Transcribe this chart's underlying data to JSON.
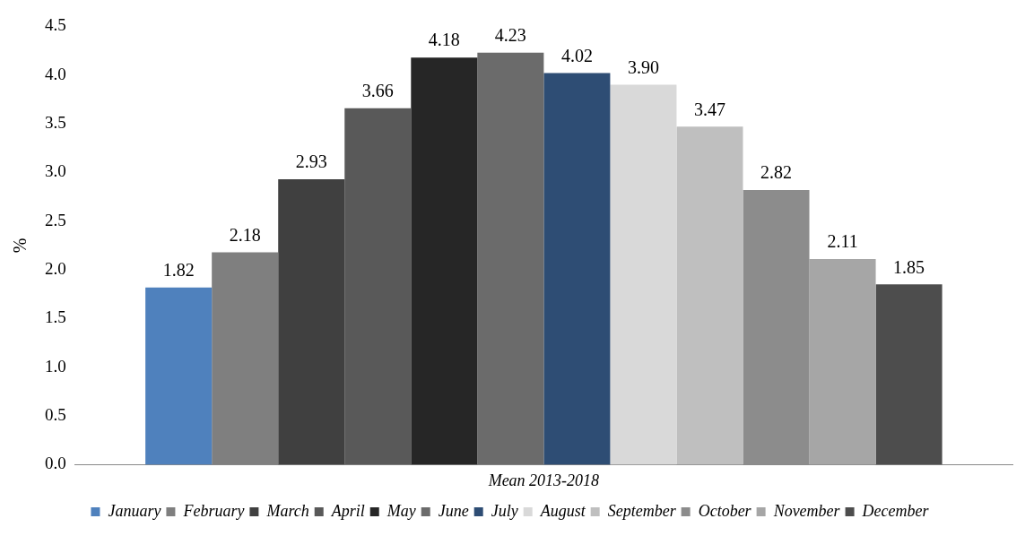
{
  "chart_data": {
    "type": "bar",
    "ylabel": "%",
    "categories": [
      "Mean 2013-2018"
    ],
    "ylim": [
      0,
      4.5
    ],
    "yticks": [
      {
        "value": 0,
        "label": "0.0"
      },
      {
        "value": 0.5,
        "label": "0.5"
      },
      {
        "value": 1,
        "label": "1.0"
      },
      {
        "value": 1.5,
        "label": "1.5"
      },
      {
        "value": 2,
        "label": "2.0"
      },
      {
        "value": 2.5,
        "label": "2.5"
      },
      {
        "value": 3,
        "label": "3.0"
      },
      {
        "value": 3.5,
        "label": "3.5"
      },
      {
        "value": 4,
        "label": "4.0"
      },
      {
        "value": 4.5,
        "label": "4.5"
      }
    ],
    "grid": false,
    "legend": "bottom",
    "series": [
      {
        "name": "January",
        "color": "#4f81bd",
        "values": [
          1.82
        ],
        "value_labels": [
          "1.82"
        ]
      },
      {
        "name": "February",
        "color": "#7f7f7f",
        "values": [
          2.18
        ],
        "value_labels": [
          "2.18"
        ]
      },
      {
        "name": "March",
        "color": "#404040",
        "values": [
          2.93
        ],
        "value_labels": [
          "2.93"
        ]
      },
      {
        "name": "April",
        "color": "#595959",
        "values": [
          3.66
        ],
        "value_labels": [
          "3.66"
        ]
      },
      {
        "name": "May",
        "color": "#262626",
        "values": [
          4.18
        ],
        "value_labels": [
          "4.18"
        ]
      },
      {
        "name": "June",
        "color": "#6b6b6b",
        "values": [
          4.23
        ],
        "value_labels": [
          "4.23"
        ]
      },
      {
        "name": "July",
        "color": "#2e4d74",
        "values": [
          4.02
        ],
        "value_labels": [
          "4.02"
        ]
      },
      {
        "name": "August",
        "color": "#d9d9d9",
        "values": [
          3.9
        ],
        "value_labels": [
          "3.90"
        ]
      },
      {
        "name": "September",
        "color": "#bfbfbf",
        "values": [
          3.47
        ],
        "value_labels": [
          "3.47"
        ]
      },
      {
        "name": "October",
        "color": "#8c8c8c",
        "values": [
          2.82
        ],
        "value_labels": [
          "2.82"
        ]
      },
      {
        "name": "November",
        "color": "#a6a6a6",
        "values": [
          2.11
        ],
        "value_labels": [
          "2.11"
        ]
      },
      {
        "name": "December",
        "color": "#4d4d4d",
        "values": [
          1.85
        ],
        "value_labels": [
          "1.85"
        ]
      }
    ]
  }
}
